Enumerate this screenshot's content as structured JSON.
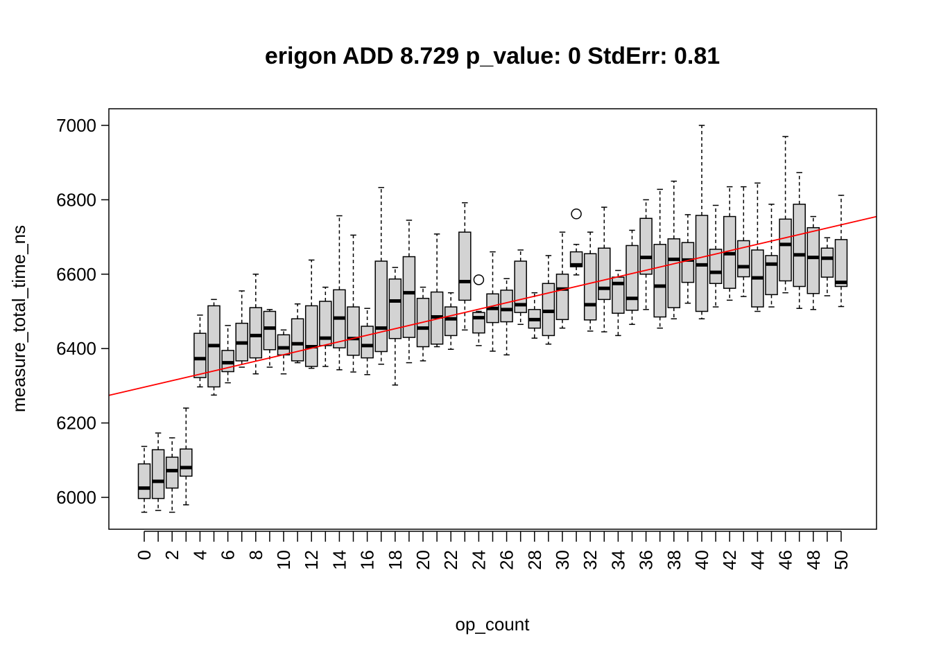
{
  "chart_data": {
    "type": "box",
    "title": "erigon ADD 8.729 p_value: 0 StdErr: 0.81",
    "xlabel": "op_count",
    "ylabel": "measure_total_time_ns",
    "ylim": [
      5915,
      7045
    ],
    "y_ticks": [
      6000,
      6200,
      6400,
      6600,
      6800,
      7000
    ],
    "x_categories": [
      0,
      1,
      2,
      3,
      4,
      5,
      6,
      7,
      8,
      9,
      10,
      11,
      12,
      13,
      14,
      15,
      16,
      17,
      18,
      19,
      20,
      21,
      22,
      23,
      24,
      25,
      26,
      27,
      28,
      29,
      30,
      31,
      32,
      33,
      34,
      35,
      36,
      37,
      38,
      39,
      40,
      41,
      42,
      43,
      44,
      45,
      46,
      47,
      48,
      49,
      50
    ],
    "x_tick_labels": [
      "0",
      "2",
      "4",
      "6",
      "8",
      "10",
      "12",
      "14",
      "16",
      "18",
      "20",
      "22",
      "24",
      "26",
      "28",
      "30",
      "32",
      "34",
      "36",
      "38",
      "40",
      "42",
      "44",
      "46",
      "48",
      "50"
    ],
    "boxes": [
      {
        "x": 0,
        "whisker_low": 5960,
        "q1": 5997,
        "median": 6025,
        "q3": 6090,
        "whisker_high": 6137
      },
      {
        "x": 1,
        "whisker_low": 5965,
        "q1": 5997,
        "median": 6043,
        "q3": 6128,
        "whisker_high": 6173
      },
      {
        "x": 2,
        "whisker_low": 5960,
        "q1": 6025,
        "median": 6072,
        "q3": 6108,
        "whisker_high": 6160
      },
      {
        "x": 3,
        "whisker_low": 5980,
        "q1": 6057,
        "median": 6080,
        "q3": 6130,
        "whisker_high": 6240
      },
      {
        "x": 4,
        "whisker_low": 6297,
        "q1": 6322,
        "median": 6373,
        "q3": 6441,
        "whisker_high": 6490
      },
      {
        "x": 5,
        "whisker_low": 6275,
        "q1": 6297,
        "median": 6408,
        "q3": 6515,
        "whisker_high": 6532
      },
      {
        "x": 6,
        "whisker_low": 6308,
        "q1": 6338,
        "median": 6362,
        "q3": 6395,
        "whisker_high": 6462
      },
      {
        "x": 7,
        "whisker_low": 6350,
        "q1": 6367,
        "median": 6415,
        "q3": 6468,
        "whisker_high": 6555
      },
      {
        "x": 8,
        "whisker_low": 6332,
        "q1": 6375,
        "median": 6435,
        "q3": 6510,
        "whisker_high": 6600
      },
      {
        "x": 9,
        "whisker_low": 6350,
        "q1": 6397,
        "median": 6455,
        "q3": 6500,
        "whisker_high": 6505
      },
      {
        "x": 10,
        "whisker_low": 6332,
        "q1": 6383,
        "median": 6402,
        "q3": 6437,
        "whisker_high": 6450
      },
      {
        "x": 11,
        "whisker_low": 6362,
        "q1": 6367,
        "median": 6413,
        "q3": 6480,
        "whisker_high": 6520
      },
      {
        "x": 12,
        "whisker_low": 6347,
        "q1": 6352,
        "median": 6405,
        "q3": 6515,
        "whisker_high": 6638
      },
      {
        "x": 13,
        "whisker_low": 6352,
        "q1": 6408,
        "median": 6428,
        "q3": 6527,
        "whisker_high": 6565
      },
      {
        "x": 14,
        "whisker_low": 6343,
        "q1": 6402,
        "median": 6482,
        "q3": 6558,
        "whisker_high": 6757
      },
      {
        "x": 15,
        "whisker_low": 6337,
        "q1": 6382,
        "median": 6427,
        "q3": 6512,
        "whisker_high": 6705
      },
      {
        "x": 16,
        "whisker_low": 6330,
        "q1": 6375,
        "median": 6408,
        "q3": 6460,
        "whisker_high": 6508
      },
      {
        "x": 17,
        "whisker_low": 6358,
        "q1": 6392,
        "median": 6455,
        "q3": 6635,
        "whisker_high": 6833
      },
      {
        "x": 18,
        "whisker_low": 6302,
        "q1": 6427,
        "median": 6528,
        "q3": 6587,
        "whisker_high": 6618
      },
      {
        "x": 19,
        "whisker_low": 6362,
        "q1": 6430,
        "median": 6550,
        "q3": 6647,
        "whisker_high": 6745
      },
      {
        "x": 20,
        "whisker_low": 6367,
        "q1": 6405,
        "median": 6455,
        "q3": 6535,
        "whisker_high": 6565
      },
      {
        "x": 21,
        "whisker_low": 6405,
        "q1": 6412,
        "median": 6485,
        "q3": 6552,
        "whisker_high": 6708
      },
      {
        "x": 22,
        "whisker_low": 6398,
        "q1": 6435,
        "median": 6480,
        "q3": 6512,
        "whisker_high": 6550
      },
      {
        "x": 23,
        "whisker_low": 6450,
        "q1": 6530,
        "median": 6580,
        "q3": 6713,
        "whisker_high": 6792
      },
      {
        "x": 24,
        "whisker_low": 6408,
        "q1": 6442,
        "median": 6483,
        "q3": 6497,
        "whisker_high": 6500,
        "outliers": [
          6585
        ]
      },
      {
        "x": 25,
        "whisker_low": 6393,
        "q1": 6470,
        "median": 6508,
        "q3": 6547,
        "whisker_high": 6660
      },
      {
        "x": 26,
        "whisker_low": 6383,
        "q1": 6472,
        "median": 6505,
        "q3": 6557,
        "whisker_high": 6588
      },
      {
        "x": 27,
        "whisker_low": 6465,
        "q1": 6497,
        "median": 6518,
        "q3": 6635,
        "whisker_high": 6665
      },
      {
        "x": 28,
        "whisker_low": 6428,
        "q1": 6455,
        "median": 6478,
        "q3": 6505,
        "whisker_high": 6550
      },
      {
        "x": 29,
        "whisker_low": 6412,
        "q1": 6435,
        "median": 6500,
        "q3": 6575,
        "whisker_high": 6650
      },
      {
        "x": 30,
        "whisker_low": 6455,
        "q1": 6478,
        "median": 6560,
        "q3": 6600,
        "whisker_high": 6713
      },
      {
        "x": 31,
        "whisker_low": 6598,
        "q1": 6620,
        "median": 6625,
        "q3": 6660,
        "whisker_high": 6680,
        "outliers": [
          6762
        ]
      },
      {
        "x": 32,
        "whisker_low": 6447,
        "q1": 6477,
        "median": 6518,
        "q3": 6655,
        "whisker_high": 6713
      },
      {
        "x": 33,
        "whisker_low": 6445,
        "q1": 6532,
        "median": 6562,
        "q3": 6670,
        "whisker_high": 6780
      },
      {
        "x": 34,
        "whisker_low": 6435,
        "q1": 6495,
        "median": 6575,
        "q3": 6592,
        "whisker_high": 6610
      },
      {
        "x": 35,
        "whisker_low": 6465,
        "q1": 6503,
        "median": 6535,
        "q3": 6677,
        "whisker_high": 6718
      },
      {
        "x": 36,
        "whisker_low": 6505,
        "q1": 6600,
        "median": 6645,
        "q3": 6750,
        "whisker_high": 6800
      },
      {
        "x": 37,
        "whisker_low": 6455,
        "q1": 6485,
        "median": 6568,
        "q3": 6680,
        "whisker_high": 6828
      },
      {
        "x": 38,
        "whisker_low": 6480,
        "q1": 6510,
        "median": 6640,
        "q3": 6695,
        "whisker_high": 6850
      },
      {
        "x": 39,
        "whisker_low": 6522,
        "q1": 6578,
        "median": 6638,
        "q3": 6685,
        "whisker_high": 6760
      },
      {
        "x": 40,
        "whisker_low": 6480,
        "q1": 6500,
        "median": 6625,
        "q3": 6758,
        "whisker_high": 7000
      },
      {
        "x": 41,
        "whisker_low": 6512,
        "q1": 6575,
        "median": 6605,
        "q3": 6667,
        "whisker_high": 6785
      },
      {
        "x": 42,
        "whisker_low": 6530,
        "q1": 6562,
        "median": 6655,
        "q3": 6755,
        "whisker_high": 6835
      },
      {
        "x": 43,
        "whisker_low": 6540,
        "q1": 6593,
        "median": 6620,
        "q3": 6690,
        "whisker_high": 6835
      },
      {
        "x": 44,
        "whisker_low": 6500,
        "q1": 6512,
        "median": 6590,
        "q3": 6665,
        "whisker_high": 6845
      },
      {
        "x": 45,
        "whisker_low": 6512,
        "q1": 6545,
        "median": 6627,
        "q3": 6650,
        "whisker_high": 6788
      },
      {
        "x": 46,
        "whisker_low": 6550,
        "q1": 6582,
        "median": 6680,
        "q3": 6748,
        "whisker_high": 6970
      },
      {
        "x": 47,
        "whisker_low": 6508,
        "q1": 6567,
        "median": 6652,
        "q3": 6788,
        "whisker_high": 6873
      },
      {
        "x": 48,
        "whisker_low": 6505,
        "q1": 6548,
        "median": 6645,
        "q3": 6725,
        "whisker_high": 6755
      },
      {
        "x": 49,
        "whisker_low": 6542,
        "q1": 6592,
        "median": 6643,
        "q3": 6670,
        "whisker_high": 6698
      },
      {
        "x": 50,
        "whisker_low": 6513,
        "q1": 6567,
        "median": 6578,
        "q3": 6693,
        "whisker_high": 6812
      }
    ],
    "regression_line": {
      "color": "#ff0000",
      "intercept": 6296.3,
      "slope": 8.729
    },
    "box_fill": "#d3d3d3",
    "grid": false,
    "legend": "none"
  }
}
